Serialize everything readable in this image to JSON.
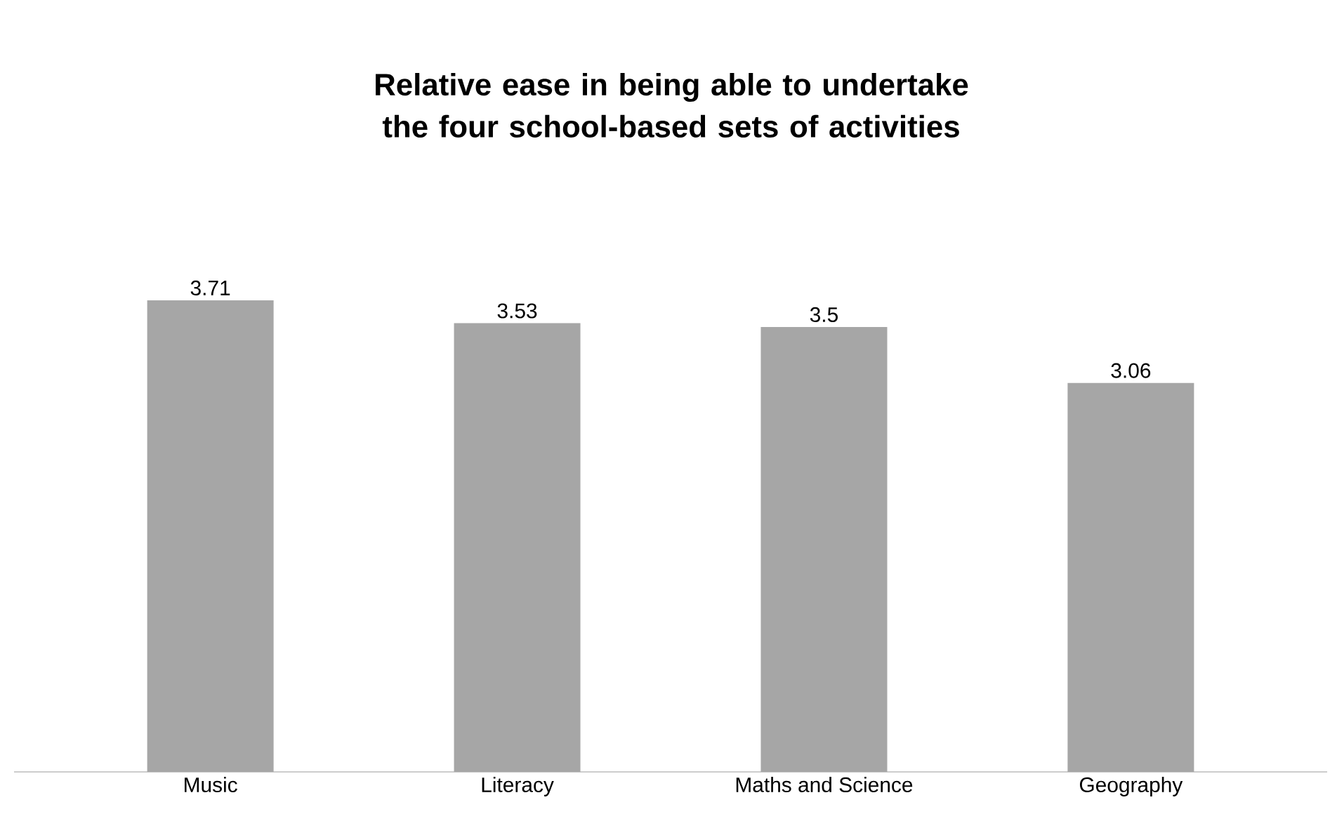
{
  "chart_data": {
    "type": "bar",
    "title": "Relative ease in being able to undertake the four school-based sets of activities",
    "categories": [
      "Music",
      "Literacy",
      "Maths and Science",
      "Geography"
    ],
    "values": [
      3.71,
      3.53,
      3.5,
      3.06
    ],
    "color": "#a6a6a6",
    "data_labels": true
  }
}
